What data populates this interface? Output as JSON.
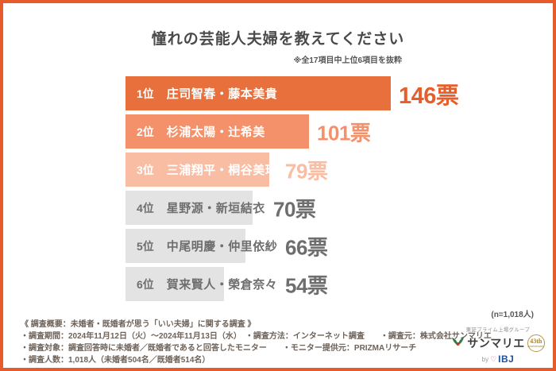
{
  "header": {
    "title": "憧れの芸能人夫婦を教えてください",
    "note": "※全17項目中上位6項目を抜粋"
  },
  "chart_data": {
    "type": "bar",
    "orientation": "horizontal",
    "title": "憧れの芸能人夫婦を教えてください",
    "unit": "票",
    "ranks": [
      "1位",
      "2位",
      "3位",
      "4位",
      "5位",
      "6位"
    ],
    "categories": [
      "庄司智春・藤本美貴",
      "杉浦太陽・辻希美",
      "三浦翔平・桐谷美玲",
      "星野源・新垣結衣",
      "中尾明慶・仲里依紗",
      "賀来賢人・榮倉奈々"
    ],
    "values": [
      146,
      101,
      79,
      70,
      66,
      54
    ],
    "bar_colors": [
      "#E8703C",
      "#F4916B",
      "#F9BDA4",
      "#E3E3E3",
      "#E3E3E3",
      "#E3E3E3"
    ],
    "value_colors": [
      "#E55E2B",
      "#F4916B",
      "#F9BDA4",
      "#6E6E6E",
      "#6E6E6E",
      "#6E6E6E"
    ],
    "label_colors": [
      "#FFFFFF",
      "#FFFFFF",
      "#FFFFFF",
      "#6E6E6E",
      "#6E6E6E",
      "#6E6E6E"
    ],
    "sample_note": "(n=1,018人)",
    "legend": "none",
    "grid": "off"
  },
  "footer": {
    "summary": "《 調査概要：未婚者・既婚者が思う「いい夫婦」に関する調査 》",
    "lines": [
      "・調査期間：2024年11月12日（火）～2024年11月13日（水）　・調査方法：インターネット調査　　・調査元：株式会社サンマリエ",
      "・調査対象：調査回答時に未婚者／既婚者であると回答したモニター　　・モニター提供元：PRIZMAリサーチ",
      "・調査人数：1,018人（未婚者504名／既婚者514名）"
    ]
  },
  "logo": {
    "group_label": "東証プライム上場グループ",
    "brand": "サンマリエ",
    "badge_number": "43th",
    "badge_sub": "anniversary",
    "by_label": "by",
    "by_brand": "IBJ"
  },
  "theme": {
    "border_color": "#E75A2B",
    "accent": "#E8703C"
  }
}
